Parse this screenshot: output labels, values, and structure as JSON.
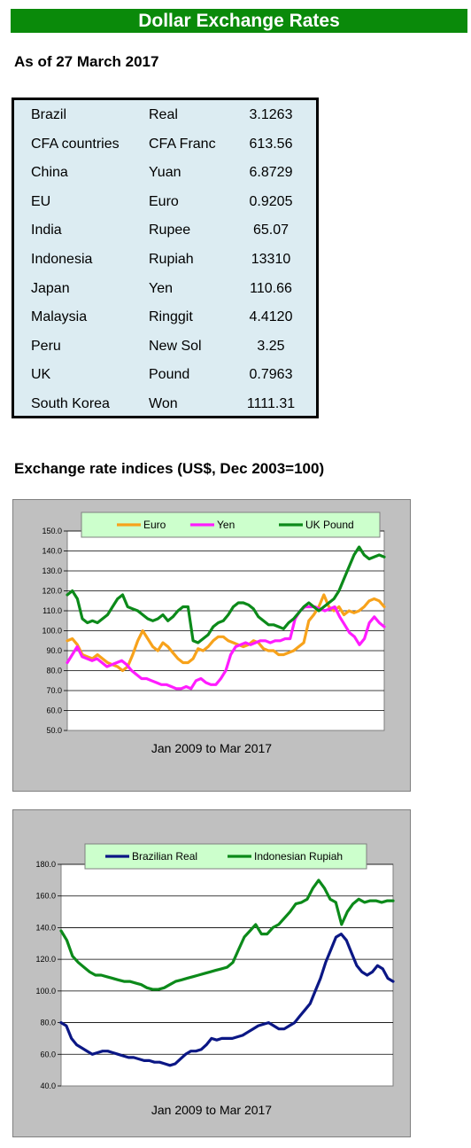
{
  "page": {
    "title": "Dollar Exchange Rates",
    "as_of": "As of 27 March 2017",
    "indices_heading": "Exchange rate indices (US$, Dec 2003=100)"
  },
  "rates": [
    {
      "country": "Brazil",
      "currency": "Real",
      "value": "3.1263"
    },
    {
      "country": "CFA countries",
      "currency": "CFA Franc",
      "value": "613.56"
    },
    {
      "country": "China",
      "currency": "Yuan",
      "value": "6.8729"
    },
    {
      "country": "EU",
      "currency": "Euro",
      "value": "0.9205"
    },
    {
      "country": "India",
      "currency": "Rupee",
      "value": "65.07"
    },
    {
      "country": "Indonesia",
      "currency": "Rupiah",
      "value": "13310"
    },
    {
      "country": "Japan",
      "currency": "Yen",
      "value": "110.66"
    },
    {
      "country": "Malaysia",
      "currency": "Ringgit",
      "value": "4.4120"
    },
    {
      "country": "Peru",
      "currency": "New Sol",
      "value": "3.25"
    },
    {
      "country": "UK",
      "currency": "Pound",
      "value": "0.7963"
    },
    {
      "country": "South Korea",
      "currency": "Won",
      "value": "1111.31"
    }
  ],
  "chart_data": [
    {
      "type": "line",
      "title": "",
      "xlabel": "Jan 2009 to Mar 2017",
      "ylabel": "",
      "ylim": [
        50,
        150
      ],
      "y_ticks": [
        50,
        60,
        70,
        80,
        90,
        100,
        110,
        120,
        130,
        140,
        150
      ],
      "y_tick_labels": [
        "50.0",
        "60.0",
        "70.0",
        "80.0",
        "90.0",
        "100.0",
        "110.0",
        "120.0",
        "130.0",
        "140.0",
        "150.0"
      ],
      "x_start": "2009-01",
      "x_end": "2017-03",
      "grid": true,
      "legend_position": "top",
      "series": [
        {
          "name": "Euro",
          "color": "#f7a21b",
          "values": [
            95,
            96,
            93,
            88,
            87,
            86,
            88,
            86,
            84,
            83,
            82,
            80,
            82,
            88,
            95,
            100,
            96,
            92,
            90,
            94,
            92,
            89,
            86,
            84,
            84,
            86,
            91,
            90,
            92,
            95,
            97,
            97,
            95,
            94,
            93,
            92,
            93,
            95,
            94,
            91,
            90,
            90,
            88,
            88,
            89,
            90,
            92,
            94,
            105,
            108,
            112,
            118,
            112,
            110,
            112,
            108,
            110,
            109,
            110,
            112,
            115,
            116,
            115,
            112
          ]
        },
        {
          "name": "Yen",
          "color": "#ff1cff",
          "values": [
            84,
            88,
            92,
            87,
            86,
            85,
            86,
            84,
            82,
            83,
            84,
            85,
            83,
            80,
            78,
            76,
            76,
            75,
            74,
            73,
            73,
            72,
            71,
            71,
            72,
            71,
            75,
            76,
            74,
            73,
            73,
            76,
            80,
            88,
            92,
            93,
            94,
            93,
            94,
            95,
            95,
            94,
            95,
            95,
            96,
            96,
            106,
            110,
            112,
            112,
            112,
            111,
            110,
            111,
            112,
            107,
            103,
            99,
            97,
            93,
            96,
            104,
            107,
            104,
            102
          ]
        },
        {
          "name": "UK Pound",
          "color": "#0c8a1a",
          "values": [
            118,
            120,
            116,
            106,
            104,
            105,
            104,
            106,
            108,
            112,
            116,
            118,
            112,
            111,
            110,
            108,
            106,
            105,
            106,
            108,
            105,
            107,
            110,
            112,
            112,
            95,
            94,
            96,
            98,
            102,
            104,
            105,
            108,
            112,
            114,
            114,
            113,
            111,
            107,
            105,
            103,
            103,
            102,
            101,
            104,
            106,
            109,
            112,
            114,
            112,
            110,
            112,
            114,
            116,
            120,
            126,
            132,
            138,
            142,
            138,
            136,
            137,
            138,
            137
          ]
        }
      ]
    },
    {
      "type": "line",
      "title": "",
      "xlabel": "Jan 2009 to Mar 2017",
      "ylabel": "",
      "ylim": [
        40,
        180
      ],
      "y_ticks": [
        40,
        60,
        80,
        100,
        120,
        140,
        160,
        180
      ],
      "y_tick_labels": [
        "40.0",
        "60.0",
        "80.0",
        "100.0",
        "120.0",
        "140.0",
        "160.0",
        "180.0"
      ],
      "x_start": "2009-01",
      "x_end": "2017-03",
      "grid": true,
      "legend_position": "top",
      "series": [
        {
          "name": "Brazilian Real",
          "color": "#0b1785",
          "values": [
            80,
            78,
            70,
            66,
            64,
            62,
            60,
            61,
            62,
            62,
            61,
            60,
            59,
            58,
            58,
            57,
            56,
            56,
            55,
            55,
            54,
            53,
            54,
            57,
            60,
            62,
            62,
            63,
            66,
            70,
            69,
            70,
            70,
            70,
            71,
            72,
            74,
            76,
            78,
            79,
            80,
            78,
            76,
            76,
            78,
            80,
            84,
            88,
            92,
            100,
            108,
            118,
            126,
            134,
            136,
            132,
            124,
            116,
            112,
            110,
            112,
            116,
            114,
            108,
            106
          ]
        },
        {
          "name": "Indonesian Rupiah",
          "color": "#0c8a1a",
          "values": [
            138,
            132,
            122,
            118,
            115,
            112,
            110,
            110,
            109,
            108,
            107,
            106,
            106,
            105,
            104,
            102,
            101,
            101,
            102,
            104,
            106,
            107,
            108,
            109,
            110,
            111,
            112,
            113,
            114,
            115,
            118,
            126,
            134,
            138,
            142,
            136,
            136,
            140,
            142,
            146,
            150,
            155,
            156,
            158,
            165,
            170,
            165,
            158,
            156,
            142,
            150,
            155,
            158,
            156,
            157,
            157,
            156,
            157,
            157
          ]
        }
      ]
    }
  ]
}
